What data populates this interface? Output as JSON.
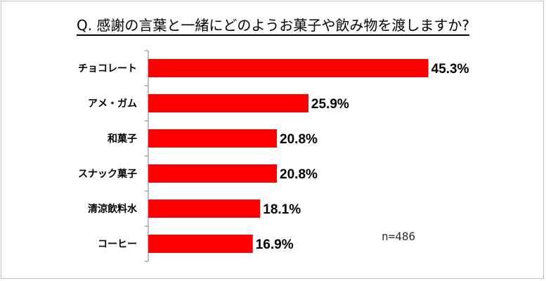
{
  "chart_data": {
    "type": "bar",
    "orientation": "horizontal",
    "title": "Q. 感謝の言葉と一緒にどのようお菓子や飲み物を渡しますか?",
    "categories": [
      "チョコレート",
      "アメ・ガム",
      "和菓子",
      "スナック菓子",
      "清涼飲料水",
      "コーヒー"
    ],
    "values": [
      45.3,
      25.9,
      20.8,
      20.8,
      18.1,
      16.9
    ],
    "value_labels": [
      "45.3%",
      "25.9%",
      "20.8%",
      "20.8%",
      "18.1%",
      "16.9%"
    ],
    "sample_note": "n=486",
    "bar_color": "#ff0000",
    "xlim": [
      0,
      50
    ],
    "grid": false
  }
}
